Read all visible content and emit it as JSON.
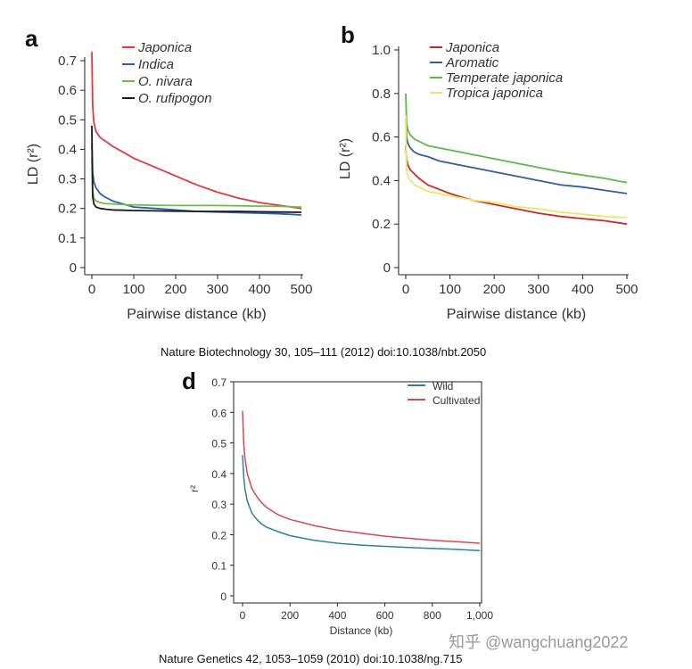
{
  "captions": {
    "top": "Nature Biotechnology 30, 105–111 (2012)  doi:10.1038/nbt.2050",
    "bottom": "Nature Genetics 42, 1053–1059 (2010) doi:10.1038/ng.715"
  },
  "watermark": "知乎 @wangchuang2022",
  "chart_data": [
    {
      "panel": "a",
      "type": "line",
      "xlabel": "Pairwise distance (kb)",
      "ylabel": "LD (r²)",
      "xlim": [
        0,
        500
      ],
      "ylim": [
        0,
        0.7
      ],
      "xticks": [
        0,
        100,
        200,
        300,
        400,
        500
      ],
      "yticks": [
        0,
        0.1,
        0.2,
        0.3,
        0.4,
        0.5,
        0.6,
        0.7
      ],
      "grid": false,
      "legend_position": "top-left",
      "series": [
        {
          "name": "Japonica",
          "color": "#e03a3a",
          "x": [
            0,
            2,
            5,
            10,
            20,
            30,
            50,
            75,
            100,
            150,
            200,
            250,
            300,
            350,
            400,
            450,
            500
          ],
          "y": [
            0.73,
            0.55,
            0.49,
            0.46,
            0.44,
            0.43,
            0.41,
            0.39,
            0.37,
            0.34,
            0.31,
            0.28,
            0.255,
            0.235,
            0.22,
            0.21,
            0.2
          ]
        },
        {
          "name": "Indica",
          "color": "#2f5ea8",
          "x": [
            0,
            2,
            5,
            10,
            20,
            30,
            50,
            75,
            100,
            150,
            200,
            250,
            300,
            350,
            400,
            450,
            500
          ],
          "y": [
            0.42,
            0.32,
            0.29,
            0.27,
            0.25,
            0.24,
            0.225,
            0.215,
            0.205,
            0.2,
            0.195,
            0.19,
            0.188,
            0.186,
            0.184,
            0.182,
            0.178
          ]
        },
        {
          "name": "O. nivara",
          "color": "#6dbf4b",
          "x": [
            0,
            2,
            5,
            10,
            20,
            30,
            50,
            75,
            100,
            150,
            200,
            250,
            300,
            350,
            400,
            450,
            500
          ],
          "y": [
            0.37,
            0.26,
            0.235,
            0.225,
            0.22,
            0.217,
            0.215,
            0.213,
            0.212,
            0.211,
            0.21,
            0.21,
            0.21,
            0.209,
            0.208,
            0.207,
            0.205
          ]
        },
        {
          "name": "O. rufipogon",
          "color": "#1a1a1a",
          "x": [
            0,
            2,
            5,
            10,
            20,
            30,
            50,
            75,
            100,
            150,
            200,
            250,
            300,
            350,
            400,
            450,
            500
          ],
          "y": [
            0.48,
            0.24,
            0.215,
            0.205,
            0.2,
            0.198,
            0.195,
            0.194,
            0.193,
            0.192,
            0.191,
            0.19,
            0.19,
            0.19,
            0.189,
            0.188,
            0.187
          ]
        }
      ]
    },
    {
      "panel": "b",
      "type": "line",
      "xlabel": "Pairwise distance (kb)",
      "ylabel": "LD (r²)",
      "xlim": [
        0,
        500
      ],
      "ylim": [
        0,
        1.0
      ],
      "xticks": [
        0,
        100,
        200,
        300,
        400,
        500
      ],
      "yticks": [
        0,
        0.2,
        0.4,
        0.6,
        0.8,
        1.0
      ],
      "grid": false,
      "legend_position": "top-left",
      "series": [
        {
          "name": "Japonica",
          "color": "#cc2a2a",
          "x": [
            0,
            2,
            5,
            10,
            20,
            30,
            50,
            75,
            100,
            150,
            200,
            250,
            300,
            350,
            400,
            450,
            500
          ],
          "y": [
            0.56,
            0.5,
            0.47,
            0.45,
            0.43,
            0.41,
            0.38,
            0.36,
            0.34,
            0.31,
            0.29,
            0.27,
            0.25,
            0.235,
            0.225,
            0.215,
            0.2
          ]
        },
        {
          "name": "Aromatic",
          "color": "#2f5ea8",
          "x": [
            0,
            2,
            5,
            10,
            20,
            30,
            50,
            75,
            100,
            150,
            200,
            250,
            300,
            350,
            400,
            450,
            500
          ],
          "y": [
            0.68,
            0.6,
            0.57,
            0.55,
            0.53,
            0.52,
            0.51,
            0.49,
            0.48,
            0.46,
            0.44,
            0.42,
            0.4,
            0.38,
            0.37,
            0.355,
            0.34
          ]
        },
        {
          "name": "Temperate japonica",
          "color": "#5cb84a",
          "x": [
            0,
            2,
            5,
            10,
            20,
            30,
            50,
            75,
            100,
            150,
            200,
            250,
            300,
            350,
            400,
            450,
            500
          ],
          "y": [
            0.8,
            0.66,
            0.63,
            0.61,
            0.59,
            0.58,
            0.56,
            0.55,
            0.54,
            0.52,
            0.5,
            0.48,
            0.46,
            0.44,
            0.425,
            0.41,
            0.39
          ]
        },
        {
          "name": "Tropica japonica",
          "color": "#e8e86a",
          "x": [
            0,
            2,
            5,
            10,
            20,
            30,
            50,
            75,
            100,
            150,
            200,
            250,
            300,
            350,
            400,
            450,
            500
          ],
          "y": [
            0.7,
            0.45,
            0.42,
            0.4,
            0.38,
            0.37,
            0.35,
            0.34,
            0.33,
            0.31,
            0.3,
            0.28,
            0.27,
            0.255,
            0.245,
            0.235,
            0.23
          ]
        }
      ]
    },
    {
      "panel": "d",
      "type": "line",
      "xlabel": "Distance (kb)",
      "ylabel": "r²",
      "xlim": [
        0,
        1000
      ],
      "ylim": [
        0,
        0.7
      ],
      "xticks": [
        0,
        200,
        400,
        600,
        800,
        1000
      ],
      "xticklabels": [
        "0",
        "200",
        "400",
        "600",
        "800",
        "1,000"
      ],
      "yticks": [
        0,
        0.1,
        0.2,
        0.3,
        0.4,
        0.5,
        0.6,
        0.7
      ],
      "grid": false,
      "legend_position": "top-right",
      "series": [
        {
          "name": "Wild",
          "color": "#2e7fa3",
          "x": [
            0,
            5,
            10,
            20,
            40,
            60,
            80,
            100,
            150,
            200,
            300,
            400,
            500,
            600,
            700,
            800,
            900,
            1000
          ],
          "y": [
            0.46,
            0.39,
            0.35,
            0.31,
            0.27,
            0.25,
            0.235,
            0.225,
            0.21,
            0.197,
            0.182,
            0.172,
            0.166,
            0.162,
            0.158,
            0.155,
            0.152,
            0.148
          ]
        },
        {
          "name": "Cultivated",
          "color": "#d9464f",
          "x": [
            0,
            5,
            10,
            20,
            40,
            60,
            80,
            100,
            150,
            200,
            300,
            400,
            500,
            600,
            700,
            800,
            900,
            1000
          ],
          "y": [
            0.605,
            0.5,
            0.45,
            0.4,
            0.35,
            0.325,
            0.305,
            0.29,
            0.265,
            0.25,
            0.23,
            0.215,
            0.205,
            0.195,
            0.188,
            0.182,
            0.177,
            0.172
          ]
        }
      ]
    }
  ]
}
